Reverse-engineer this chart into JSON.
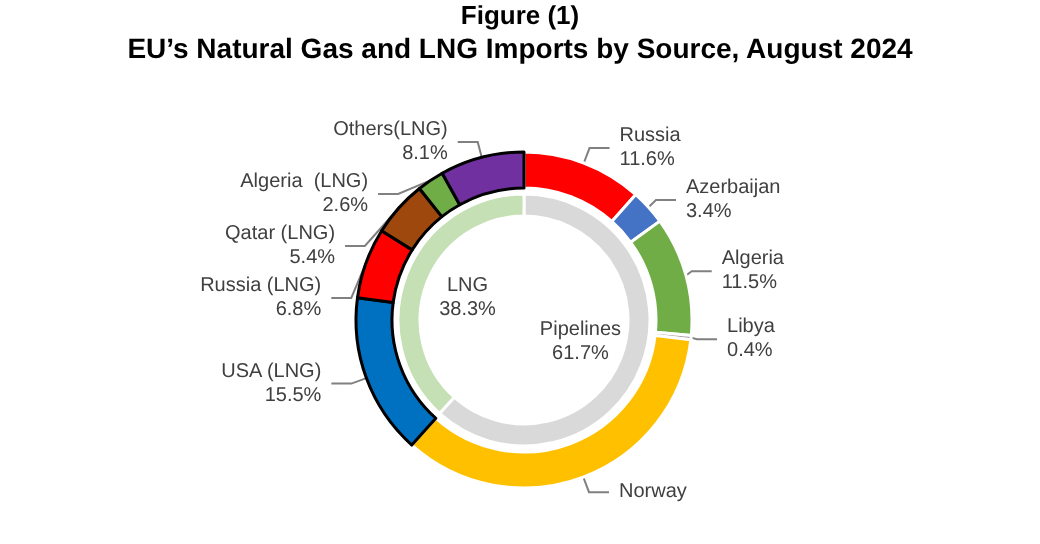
{
  "chart_data": [
    {
      "type": "donut",
      "title": "Figure (1)",
      "subtitle": "EU’s Natural Gas and LNG Imports by Source, August 2024",
      "categories": [
        "Russia",
        "Azerbaijan",
        "Algeria",
        "Libya",
        "Norway",
        "USA (LNG)",
        "Russia (LNG)",
        "Qatar (LNG)",
        "Algeria  (LNG)",
        "Others(LNG)"
      ],
      "values": [
        11.6,
        3.4,
        11.5,
        0.4,
        34.8,
        15.5,
        6.8,
        5.4,
        2.6,
        8.1
      ],
      "value_labels": [
        "11.6%",
        "3.4%",
        "11.5%",
        "0.4%",
        null,
        "15.5%",
        "6.8%",
        "5.4%",
        "2.6%",
        "8.1%"
      ],
      "colors": [
        "#ff0000",
        "#4472c4",
        "#70ad47",
        "#a5a5a5",
        "#ffc000",
        "#0070c0",
        "#ff0000",
        "#9e480e",
        "#70ad47",
        "#7030a0"
      ]
    },
    {
      "type": "donut",
      "categories": [
        "Pipelines",
        "LNG"
      ],
      "values": [
        61.7,
        38.3
      ],
      "value_labels": [
        "61.7%",
        "38.3%"
      ],
      "colors": [
        "#d9d9d9",
        "#c5e0b4"
      ]
    }
  ]
}
